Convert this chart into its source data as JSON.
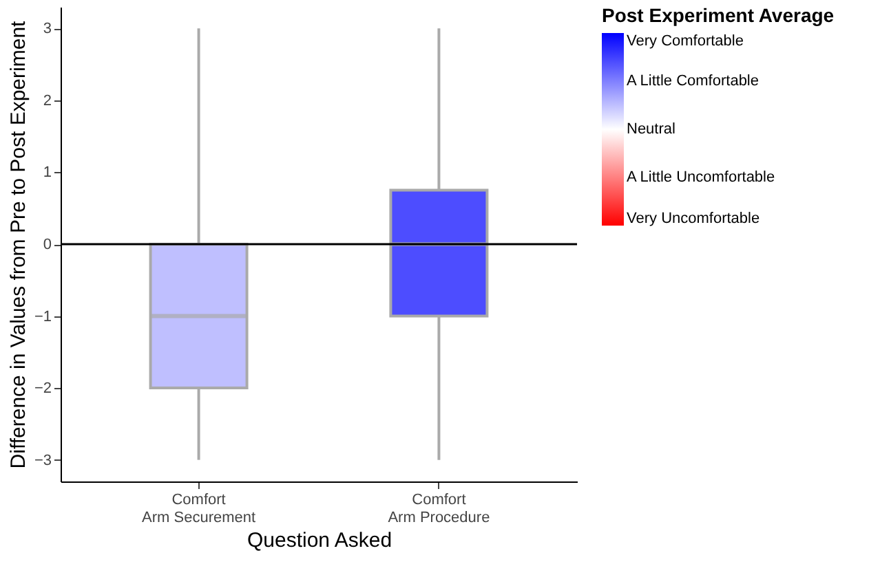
{
  "chart_data": {
    "type": "box",
    "xlabel": "Question Asked",
    "ylabel": "Difference in Values from Pre to Post Experiment",
    "categories": [
      "Comfort\nArm Securement",
      "Comfort\nArm Procedure"
    ],
    "boxes": [
      {
        "low": -3,
        "q1": -2,
        "median": -1,
        "q3": 0,
        "high": 3
      },
      {
        "low": -3,
        "q1": -1,
        "median": 0,
        "q3": 0.75,
        "high": 3
      }
    ],
    "cvalues": [
      0.5,
      1.4
    ],
    "clabel": "Post Experiment Average",
    "clim": [
      -2,
      2
    ],
    "cticks": [
      {
        "value": 2,
        "label": "Very Comfortable"
      },
      {
        "value": 1,
        "label": "A Little Comfortable"
      },
      {
        "value": 0,
        "label": "Neutral"
      },
      {
        "value": -1,
        "label": "A Little Uncomfortable"
      },
      {
        "value": -2,
        "label": "Very Uncomfortable"
      }
    ],
    "ylim": [
      -3.3,
      3.3
    ],
    "yticks": [
      -3,
      -2,
      -1,
      0,
      1,
      2,
      3
    ],
    "ref_lines": [
      {
        "axis": "y",
        "value": 0,
        "color": "#000000"
      }
    ],
    "grid": false
  }
}
